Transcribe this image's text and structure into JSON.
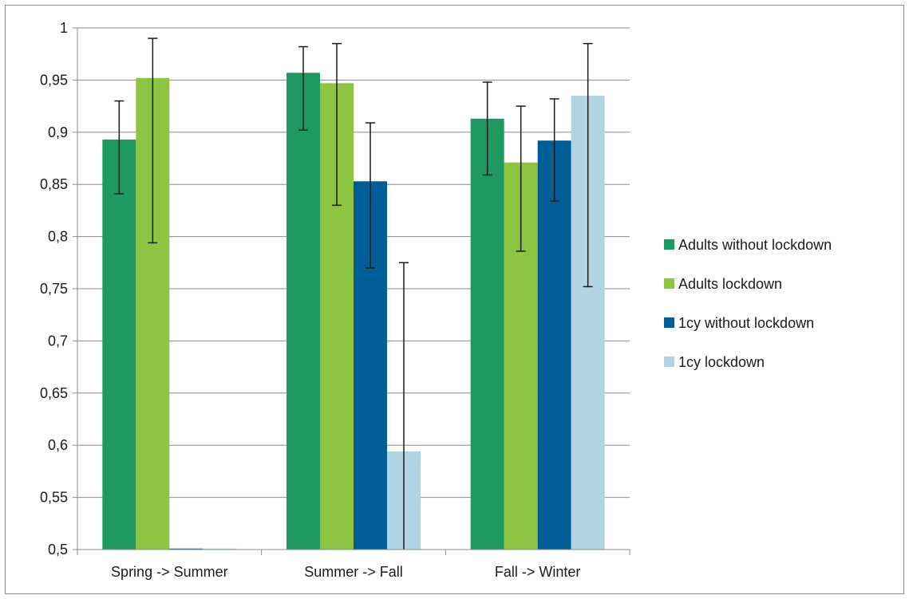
{
  "chart_data": {
    "type": "bar",
    "title": "",
    "xlabel": "",
    "ylabel": "",
    "ylim": [
      0.5,
      1
    ],
    "yticks": [
      "0,5",
      "0,55",
      "0,6",
      "0,65",
      "0,7",
      "0,75",
      "0,8",
      "0,85",
      "0,9",
      "0,95",
      "1"
    ],
    "grid": true,
    "legend_position": "right",
    "categories": [
      "Spring -> Summer",
      "Summer -> Fall",
      "Fall -> Winter"
    ],
    "series": [
      {
        "name": "Adults without lockdown",
        "color": "#1e9960",
        "values": [
          0.893,
          0.957,
          0.913
        ],
        "err_low": [
          0.841,
          0.902,
          0.859
        ],
        "err_high": [
          0.93,
          0.982,
          0.948
        ]
      },
      {
        "name": "Adults lockdown",
        "color": "#8dc542",
        "values": [
          0.952,
          0.947,
          0.871
        ],
        "err_low": [
          0.794,
          0.83,
          0.786
        ],
        "err_high": [
          0.99,
          0.985,
          0.925
        ]
      },
      {
        "name": "1cy without lockdown",
        "color": "#005e97",
        "values": [
          null,
          0.853,
          0.892
        ],
        "err_low": [
          null,
          0.77,
          0.834
        ],
        "err_high": [
          null,
          0.909,
          0.932
        ]
      },
      {
        "name": "1cy lockdown",
        "color": "#b0d4e1",
        "values": [
          null,
          0.594,
          0.935
        ],
        "err_low": [
          null,
          0.5,
          0.752
        ],
        "err_high": [
          null,
          0.775,
          0.985
        ]
      }
    ]
  }
}
